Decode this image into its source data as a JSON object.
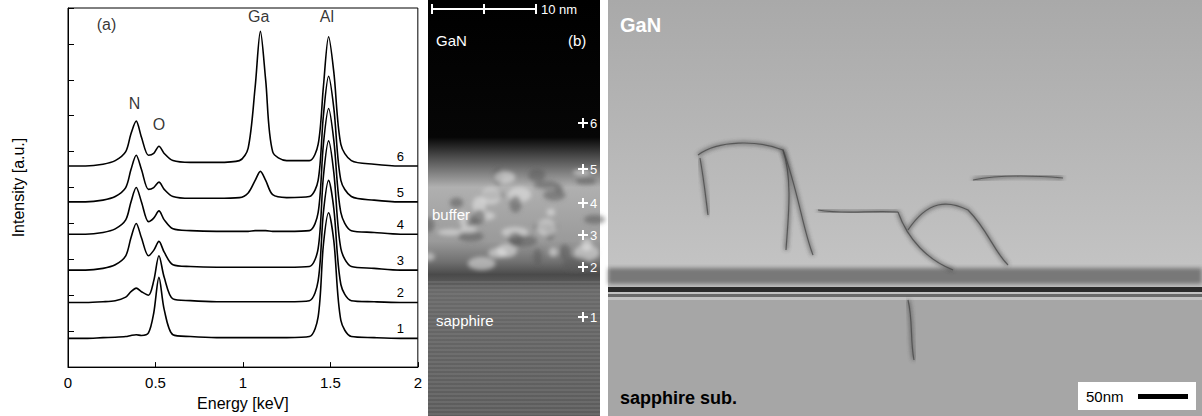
{
  "chart_data": {
    "type": "line",
    "x_label": "Energy [keV]",
    "y_label": "Intensity [a.u.]",
    "xlim": [
      0,
      2
    ],
    "xticks": [
      0,
      0.5,
      1,
      1.5,
      2
    ],
    "ylim": [
      0,
      10
    ],
    "yticks": [
      0,
      1,
      2,
      3,
      4,
      5,
      6,
      7,
      8,
      9,
      10
    ],
    "tick_labels": "x",
    "grid": false,
    "x": [
      0,
      0.1,
      0.2,
      0.27,
      0.33,
      0.36,
      0.39,
      0.42,
      0.46,
      0.49,
      0.52,
      0.55,
      0.6,
      0.7,
      0.85,
      0.98,
      1.03,
      1.07,
      1.1,
      1.13,
      1.17,
      1.25,
      1.38,
      1.43,
      1.46,
      1.49,
      1.52,
      1.56,
      1.62,
      1.75,
      1.9,
      2.0
    ],
    "series": [
      {
        "name": "1",
        "color": "#000000",
        "values": [
          0.8,
          0.8,
          0.82,
          0.83,
          0.85,
          0.88,
          0.9,
          0.88,
          0.95,
          1.5,
          2.5,
          1.6,
          0.9,
          0.85,
          0.82,
          0.82,
          0.82,
          0.82,
          0.82,
          0.82,
          0.82,
          0.82,
          0.85,
          1.4,
          3.4,
          4.3,
          3.5,
          1.3,
          0.85,
          0.82,
          0.8,
          0.8
        ]
      },
      {
        "name": "2",
        "color": "#000000",
        "values": [
          1.8,
          1.8,
          1.82,
          1.85,
          1.95,
          2.1,
          2.2,
          2.1,
          2.0,
          2.4,
          3.1,
          2.5,
          1.9,
          1.85,
          1.82,
          1.82,
          1.82,
          1.82,
          1.82,
          1.82,
          1.82,
          1.82,
          1.85,
          2.4,
          4.3,
          5.2,
          4.4,
          2.3,
          1.85,
          1.82,
          1.8,
          1.8
        ]
      },
      {
        "name": "3",
        "color": "#000000",
        "values": [
          2.7,
          2.7,
          2.75,
          2.85,
          3.1,
          3.6,
          4.0,
          3.6,
          3.1,
          3.25,
          3.5,
          3.2,
          2.85,
          2.8,
          2.78,
          2.78,
          2.78,
          2.78,
          2.78,
          2.78,
          2.78,
          2.78,
          2.8,
          3.3,
          5.3,
          6.3,
          5.4,
          3.3,
          2.8,
          2.75,
          2.7,
          2.7
        ]
      },
      {
        "name": "4",
        "color": "#000000",
        "values": [
          3.7,
          3.7,
          3.75,
          3.85,
          4.1,
          4.6,
          5.0,
          4.6,
          4.05,
          4.15,
          4.35,
          4.1,
          3.85,
          3.8,
          3.78,
          3.78,
          3.78,
          3.8,
          3.8,
          3.8,
          3.78,
          3.78,
          3.8,
          4.3,
          6.2,
          7.2,
          6.3,
          4.3,
          3.8,
          3.75,
          3.7,
          3.7
        ]
      },
      {
        "name": "5",
        "color": "#000000",
        "values": [
          4.6,
          4.6,
          4.65,
          4.75,
          5.0,
          5.5,
          5.9,
          5.5,
          4.95,
          5.0,
          5.15,
          4.95,
          4.75,
          4.7,
          4.7,
          4.72,
          4.85,
          5.2,
          5.45,
          5.2,
          4.8,
          4.72,
          4.75,
          5.2,
          7.0,
          8.1,
          7.2,
          5.2,
          4.75,
          4.65,
          4.6,
          4.6
        ]
      },
      {
        "name": "6",
        "color": "#000000",
        "values": [
          5.6,
          5.6,
          5.65,
          5.75,
          6.0,
          6.5,
          6.85,
          6.4,
          5.9,
          5.95,
          6.15,
          5.95,
          5.75,
          5.7,
          5.7,
          5.75,
          6.1,
          7.8,
          9.35,
          8.0,
          6.0,
          5.75,
          5.75,
          6.2,
          7.8,
          9.2,
          8.2,
          6.2,
          5.75,
          5.65,
          5.6,
          5.6
        ]
      }
    ],
    "annotations": [
      {
        "text": "(a)",
        "x": 0.22,
        "y": 9.55
      },
      {
        "text": "N",
        "x": 0.38,
        "y": 7.35
      },
      {
        "text": "O",
        "x": 0.52,
        "y": 6.75
      },
      {
        "text": "Ga",
        "x": 1.09,
        "y": 9.75
      },
      {
        "text": "Al",
        "x": 1.48,
        "y": 9.75
      }
    ]
  },
  "panel_b": {
    "label": "(b)",
    "scale_bar": "10 nm",
    "regions": [
      "GaN",
      "buffer",
      "sapphire"
    ],
    "points": [
      "1",
      "2",
      "3",
      "4",
      "5",
      "6"
    ]
  },
  "panel_c": {
    "regions": [
      "GaN",
      "sapphire sub."
    ],
    "scale_bar": "50nm"
  }
}
